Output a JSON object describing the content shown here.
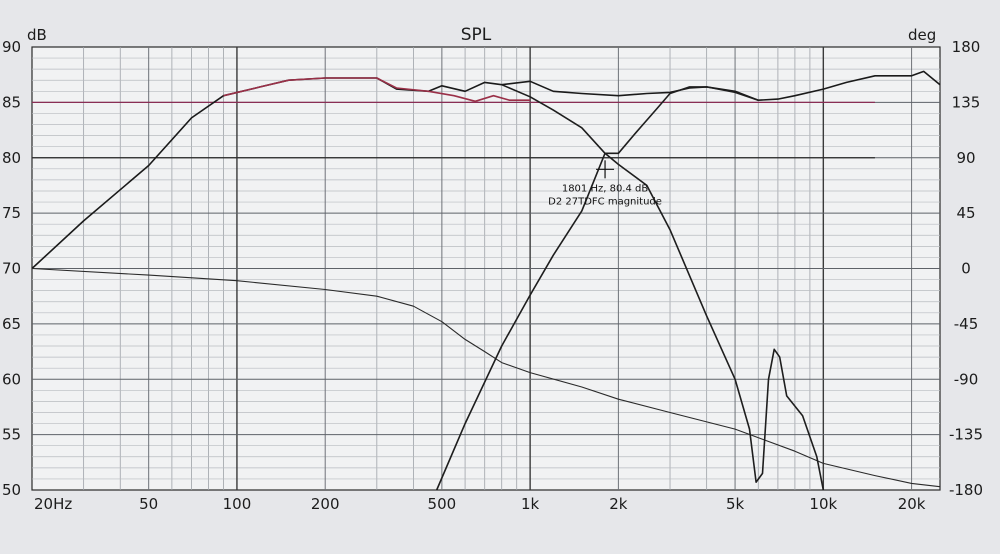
{
  "chart_data": {
    "type": "line",
    "title": "SPL",
    "left_unit": "dB",
    "right_unit": "deg",
    "x_scale": "log",
    "xlim": [
      20,
      25000
    ],
    "ylim": [
      50,
      90
    ],
    "y2lim": [
      -180,
      180
    ],
    "grid": true,
    "x_ticks": [
      {
        "value": 20,
        "label": "20Hz"
      },
      {
        "value": 50,
        "label": "50"
      },
      {
        "value": 100,
        "label": "100"
      },
      {
        "value": 200,
        "label": "200"
      },
      {
        "value": 500,
        "label": "500"
      },
      {
        "value": 1000,
        "label": "1k"
      },
      {
        "value": 2000,
        "label": "2k"
      },
      {
        "value": 5000,
        "label": "5k"
      },
      {
        "value": 10000,
        "label": "10k"
      },
      {
        "value": 20000,
        "label": "20k"
      }
    ],
    "y_ticks": [
      90,
      85,
      80,
      75,
      70,
      65,
      60,
      55,
      50
    ],
    "y2_ticks": [
      180,
      135,
      90,
      45,
      0,
      -45,
      -90,
      -135,
      -180
    ],
    "series": [
      {
        "color": "#1a1a1a",
        "points": [
          [
            20,
            70
          ],
          [
            30,
            74.3
          ],
          [
            50,
            79.3
          ],
          [
            70,
            83.6
          ],
          [
            90,
            85.6
          ],
          [
            120,
            86.4
          ],
          [
            150,
            87.0
          ],
          [
            200,
            87.2
          ],
          [
            300,
            87.2
          ],
          [
            350,
            86.2
          ],
          [
            450,
            86.0
          ],
          [
            500,
            86.5
          ],
          [
            600,
            86.0
          ],
          [
            700,
            86.8
          ],
          [
            800,
            86.6
          ],
          [
            1000,
            86.9
          ],
          [
            1200,
            86.0
          ],
          [
            1500,
            85.8
          ],
          [
            2000,
            85.6
          ],
          [
            2500,
            85.8
          ],
          [
            3000,
            85.9
          ],
          [
            3500,
            86.3
          ],
          [
            4000,
            86.4
          ],
          [
            5000,
            86.0
          ],
          [
            6000,
            85.2
          ],
          [
            7000,
            85.3
          ],
          [
            8000,
            85.6
          ],
          [
            10000,
            86.2
          ],
          [
            12000,
            86.8
          ],
          [
            15000,
            87.4
          ],
          [
            20000,
            87.4
          ],
          [
            22000,
            87.8
          ],
          [
            25000,
            86.6
          ]
        ]
      },
      {
        "color": "#9a3048",
        "points": [
          [
            90,
            85.6
          ],
          [
            120,
            86.4
          ],
          [
            150,
            87.0
          ],
          [
            200,
            87.2
          ],
          [
            300,
            87.2
          ],
          [
            350,
            86.3
          ],
          [
            450,
            86.0
          ],
          [
            550,
            85.6
          ],
          [
            650,
            85.1
          ],
          [
            750,
            85.6
          ],
          [
            850,
            85.2
          ],
          [
            1000,
            85.2
          ]
        ]
      },
      {
        "color": "#2a2a2a",
        "points": [
          [
            20,
            70
          ],
          [
            50,
            69.4
          ],
          [
            100,
            68.9
          ],
          [
            200,
            68.1
          ],
          [
            300,
            67.5
          ],
          [
            400,
            66.6
          ],
          [
            500,
            65.2
          ],
          [
            600,
            63.6
          ],
          [
            700,
            62.5
          ],
          [
            800,
            61.5
          ],
          [
            1000,
            60.6
          ],
          [
            1500,
            59.3
          ],
          [
            2000,
            58.2
          ],
          [
            3000,
            57.0
          ],
          [
            5000,
            55.5
          ],
          [
            8000,
            53.5
          ],
          [
            10000,
            52.4
          ],
          [
            15000,
            51.3
          ],
          [
            20000,
            50.6
          ],
          [
            25000,
            50.3
          ]
        ]
      },
      {
        "color": "#1e1e1e",
        "points": [
          [
            480,
            50
          ],
          [
            600,
            56
          ],
          [
            800,
            63
          ],
          [
            1000,
            67.6
          ],
          [
            1200,
            71.2
          ],
          [
            1500,
            75.2
          ],
          [
            1801,
            80.4
          ],
          [
            2000,
            80.4
          ],
          [
            2300,
            82.3
          ],
          [
            2700,
            84.4
          ],
          [
            3000,
            85.8
          ],
          [
            3500,
            86.4
          ],
          [
            4000,
            86.4
          ],
          [
            5000,
            85.9
          ],
          [
            6000,
            85.2
          ]
        ]
      },
      {
        "color": "#1e1e1e",
        "points": [
          [
            800,
            86.6
          ],
          [
            1000,
            85.5
          ],
          [
            1200,
            84.3
          ],
          [
            1500,
            82.7
          ],
          [
            1801,
            80.4
          ],
          [
            2000,
            79.4
          ],
          [
            2500,
            77.5
          ],
          [
            3000,
            73.5
          ],
          [
            4000,
            65.7
          ],
          [
            5000,
            60.0
          ],
          [
            5600,
            55.5
          ],
          [
            5900,
            50.7
          ],
          [
            6200,
            51.5
          ],
          [
            6500,
            60.0
          ],
          [
            6800,
            62.7
          ],
          [
            7100,
            62.0
          ],
          [
            7500,
            58.5
          ],
          [
            8500,
            56.7
          ],
          [
            9500,
            53.0
          ],
          [
            10000,
            50
          ]
        ]
      }
    ],
    "annotations": [
      {
        "x": 1801,
        "y": 80.4,
        "label": "1801 Hz, 80.4 dB"
      },
      {
        "x": 1801,
        "y": 80.4,
        "label": "D2 27TDFC magnitude"
      }
    ],
    "reference_lines": [
      {
        "y": 85,
        "color": "#8a2e55"
      },
      {
        "y": 80,
        "color": "#2b2b2b"
      }
    ]
  }
}
